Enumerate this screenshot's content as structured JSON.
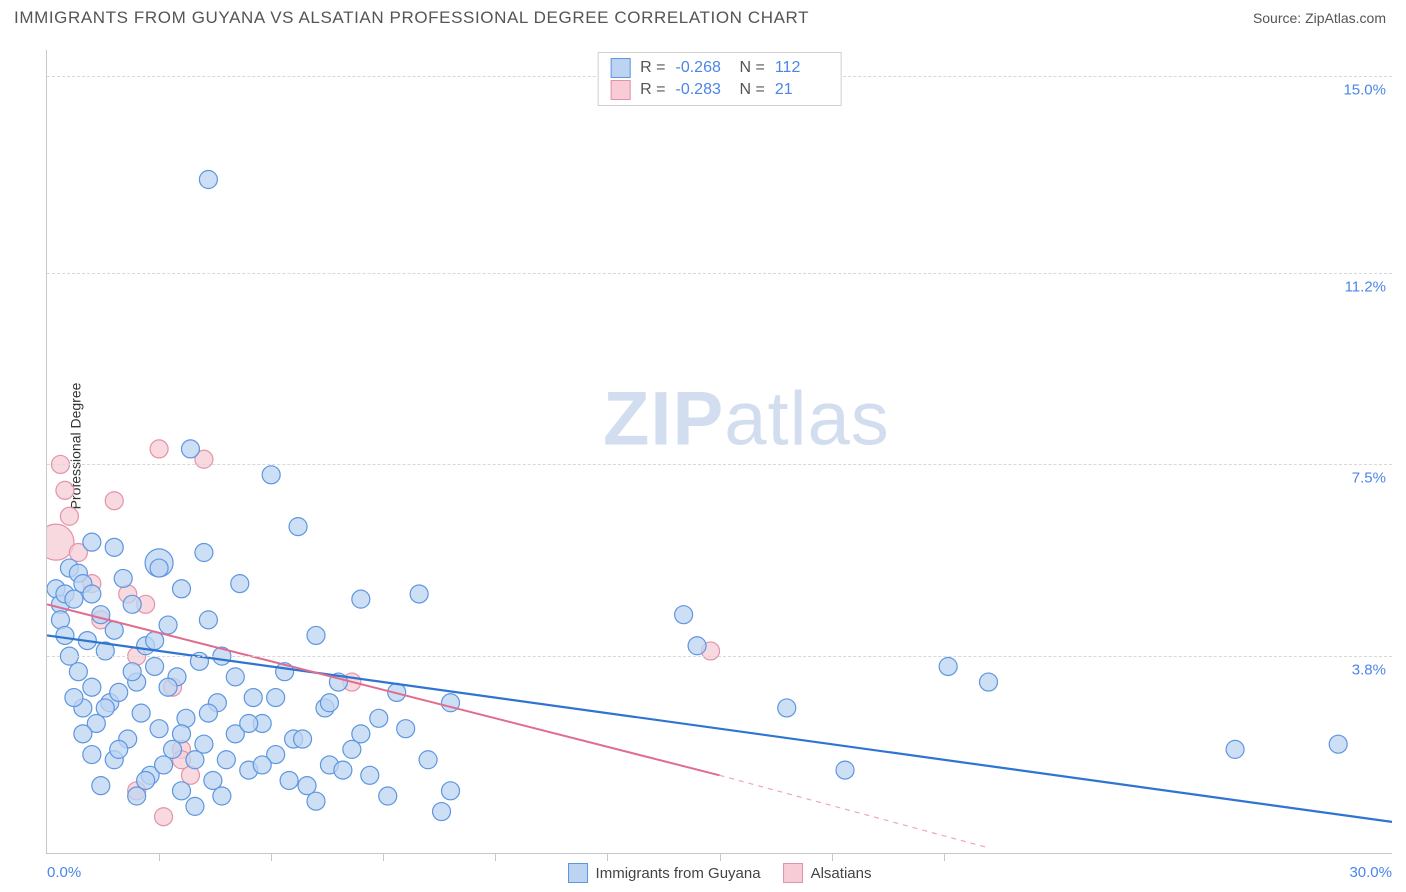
{
  "title": "IMMIGRANTS FROM GUYANA VS ALSATIAN PROFESSIONAL DEGREE CORRELATION CHART",
  "source_label": "Source:",
  "source_name": "ZipAtlas.com",
  "watermark": {
    "bold": "ZIP",
    "light": "atlas"
  },
  "y_axis_label": "Professional Degree",
  "chart": {
    "type": "scatter",
    "xlim": [
      0,
      30
    ],
    "ylim": [
      0,
      15.5
    ],
    "x_ticks_label": {
      "0": "0.0%",
      "30": "30.0%"
    },
    "x_small_ticks": [
      2.5,
      5,
      7.5,
      10,
      12.5,
      15,
      17.5,
      20
    ],
    "y_ticks": [
      {
        "v": 3.8,
        "label": "3.8%"
      },
      {
        "v": 7.5,
        "label": "7.5%"
      },
      {
        "v": 11.2,
        "label": "11.2%"
      },
      {
        "v": 15.0,
        "label": "15.0%"
      }
    ],
    "grid_color": "#d8d8d8",
    "background_color": "#ffffff",
    "series": [
      {
        "name": "Immigrants from Guyana",
        "fill": "#bcd4f1",
        "stroke": "#5e96e0",
        "line_color": "#2e74d0",
        "R": "-0.268",
        "N": "112",
        "trend": {
          "x1": 0,
          "y1": 4.2,
          "x2": 30,
          "y2": 0.6
        },
        "points": [
          [
            0.2,
            5.1
          ],
          [
            0.3,
            4.8
          ],
          [
            0.3,
            4.5
          ],
          [
            0.4,
            5.0
          ],
          [
            0.4,
            4.2
          ],
          [
            0.5,
            5.5
          ],
          [
            0.5,
            3.8
          ],
          [
            0.6,
            4.9
          ],
          [
            0.7,
            5.4
          ],
          [
            0.7,
            3.5
          ],
          [
            0.8,
            5.2
          ],
          [
            0.8,
            2.8
          ],
          [
            0.9,
            4.1
          ],
          [
            1.0,
            3.2
          ],
          [
            1.0,
            5.0
          ],
          [
            1.1,
            2.5
          ],
          [
            1.2,
            4.6
          ],
          [
            1.2,
            1.3
          ],
          [
            1.3,
            3.9
          ],
          [
            1.4,
            2.9
          ],
          [
            1.5,
            4.3
          ],
          [
            1.5,
            1.8
          ],
          [
            1.6,
            3.1
          ],
          [
            1.7,
            5.3
          ],
          [
            1.8,
            2.2
          ],
          [
            1.9,
            4.8
          ],
          [
            2.0,
            3.3
          ],
          [
            2.0,
            1.1
          ],
          [
            2.1,
            2.7
          ],
          [
            2.2,
            4.0
          ],
          [
            2.3,
            1.5
          ],
          [
            2.4,
            3.6
          ],
          [
            2.5,
            2.4
          ],
          [
            2.5,
            5.6,
            14
          ],
          [
            2.6,
            1.7
          ],
          [
            2.7,
            4.4
          ],
          [
            2.8,
            2.0
          ],
          [
            2.9,
            3.4
          ],
          [
            3.0,
            1.2
          ],
          [
            3.0,
            5.1
          ],
          [
            3.1,
            2.6
          ],
          [
            3.2,
            7.8
          ],
          [
            3.3,
            0.9
          ],
          [
            3.4,
            3.7
          ],
          [
            3.5,
            2.1
          ],
          [
            3.6,
            4.5
          ],
          [
            3.7,
            1.4
          ],
          [
            3.8,
            2.9
          ],
          [
            3.9,
            3.8
          ],
          [
            4.0,
            1.8
          ],
          [
            3.6,
            13.0
          ],
          [
            4.2,
            2.3
          ],
          [
            4.3,
            5.2
          ],
          [
            4.5,
            1.6
          ],
          [
            4.6,
            3.0
          ],
          [
            4.8,
            2.5
          ],
          [
            5.0,
            7.3
          ],
          [
            5.1,
            1.9
          ],
          [
            5.3,
            3.5
          ],
          [
            5.5,
            2.2
          ],
          [
            5.6,
            6.3
          ],
          [
            5.8,
            1.3
          ],
          [
            6.0,
            4.2
          ],
          [
            6.2,
            2.8
          ],
          [
            6.3,
            1.7
          ],
          [
            6.5,
            3.3
          ],
          [
            6.8,
            2.0
          ],
          [
            7.0,
            4.9
          ],
          [
            7.2,
            1.5
          ],
          [
            7.4,
            2.6
          ],
          [
            7.6,
            1.1
          ],
          [
            7.8,
            3.1
          ],
          [
            8.0,
            2.4
          ],
          [
            8.3,
            5.0
          ],
          [
            8.5,
            1.8
          ],
          [
            8.8,
            0.8
          ],
          [
            9.0,
            2.9
          ],
          [
            9.0,
            1.2
          ],
          [
            14.2,
            4.6
          ],
          [
            14.5,
            4.0
          ],
          [
            16.5,
            2.8
          ],
          [
            17.8,
            1.6
          ],
          [
            20.1,
            3.6
          ],
          [
            21.0,
            3.3
          ],
          [
            26.5,
            2.0
          ],
          [
            28.8,
            2.1
          ],
          [
            1.0,
            6.0
          ],
          [
            1.5,
            5.9
          ],
          [
            2.5,
            5.5
          ],
          [
            3.5,
            5.8
          ],
          [
            0.6,
            3.0
          ],
          [
            0.8,
            2.3
          ],
          [
            1.0,
            1.9
          ],
          [
            1.3,
            2.8
          ],
          [
            1.6,
            2.0
          ],
          [
            1.9,
            3.5
          ],
          [
            2.2,
            1.4
          ],
          [
            2.4,
            4.1
          ],
          [
            2.7,
            3.2
          ],
          [
            3.0,
            2.3
          ],
          [
            3.3,
            1.8
          ],
          [
            3.6,
            2.7
          ],
          [
            3.9,
            1.1
          ],
          [
            4.2,
            3.4
          ],
          [
            4.5,
            2.5
          ],
          [
            4.8,
            1.7
          ],
          [
            5.1,
            3.0
          ],
          [
            5.4,
            1.4
          ],
          [
            5.7,
            2.2
          ],
          [
            6.0,
            1.0
          ],
          [
            6.3,
            2.9
          ],
          [
            6.6,
            1.6
          ],
          [
            7.0,
            2.3
          ]
        ]
      },
      {
        "name": "Alsatians",
        "fill": "#f7ccd6",
        "stroke": "#e393a8",
        "line_color": "#e06d8f",
        "R": "-0.283",
        "N": "21",
        "trend_solid": {
          "x1": 0,
          "y1": 4.8,
          "x2": 15,
          "y2": 1.5
        },
        "trend_dashed": {
          "x1": 15,
          "y1": 1.5,
          "x2": 21,
          "y2": 0.1
        },
        "points": [
          [
            0.2,
            6.0,
            18
          ],
          [
            0.3,
            7.5
          ],
          [
            0.4,
            7.0
          ],
          [
            0.5,
            6.5
          ],
          [
            0.7,
            5.8
          ],
          [
            1.0,
            5.2
          ],
          [
            1.2,
            4.5
          ],
          [
            1.5,
            6.8
          ],
          [
            1.8,
            5.0
          ],
          [
            2.0,
            3.8
          ],
          [
            2.2,
            4.8
          ],
          [
            2.5,
            7.8
          ],
          [
            2.8,
            3.2
          ],
          [
            3.5,
            7.6
          ],
          [
            3.0,
            2.0
          ],
          [
            3.2,
            1.5
          ],
          [
            2.0,
            1.2
          ],
          [
            3.0,
            1.8
          ],
          [
            6.8,
            3.3
          ],
          [
            2.6,
            0.7
          ],
          [
            14.8,
            3.9
          ]
        ]
      }
    ]
  },
  "legend_bottom": [
    {
      "label": "Immigrants from Guyana",
      "fill": "#bcd4f1",
      "stroke": "#5e96e0"
    },
    {
      "label": "Alsatians",
      "fill": "#f7ccd6",
      "stroke": "#e393a8"
    }
  ]
}
